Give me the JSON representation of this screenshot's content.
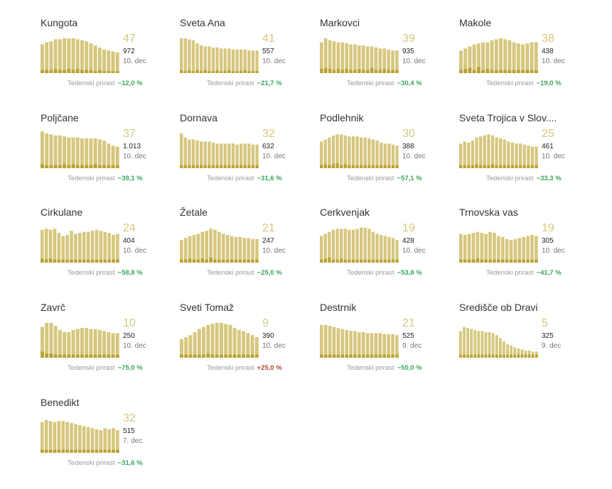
{
  "growth_label": "Tedenski prirast",
  "colors": {
    "bar": "#d6c77e",
    "bar_dark": "#b9a232",
    "big": "#d6c77e",
    "negative": "#3aa55d",
    "positive": "#b04a3a"
  },
  "chart_data": [
    {
      "type": "bar",
      "name": "Kungota",
      "big": "47",
      "total": "972",
      "date": "10. dec",
      "growth": "−12,0 %",
      "trend": "down",
      "values": [
        28,
        30,
        31,
        33,
        33,
        34,
        34,
        34,
        33,
        32,
        31,
        29,
        27,
        25,
        23,
        22,
        21,
        20
      ],
      "dark": [
        3,
        3,
        3,
        4,
        3,
        3,
        4,
        3,
        4,
        3,
        3,
        3,
        2,
        3,
        2,
        2,
        2,
        2
      ]
    },
    {
      "type": "bar",
      "name": "Sveta Ana",
      "big": "41",
      "total": "557",
      "date": "10. dec",
      "growth": "−21,7 %",
      "trend": "down",
      "values": [
        34,
        34,
        33,
        32,
        29,
        27,
        26,
        26,
        25,
        25,
        24,
        24,
        24,
        23,
        23,
        23,
        23,
        22,
        22,
        22
      ],
      "dark": [
        3,
        2,
        3,
        2,
        3,
        2,
        3,
        2,
        2,
        3,
        2,
        2,
        3,
        2,
        2,
        2,
        3,
        2,
        2,
        2
      ]
    },
    {
      "type": "bar",
      "name": "Markovci",
      "big": "39",
      "total": "935",
      "date": "10. dec",
      "growth": "−30,4 %",
      "trend": "down",
      "values": [
        30,
        34,
        32,
        31,
        30,
        30,
        29,
        28,
        28,
        27,
        27,
        26,
        26,
        25,
        24,
        24,
        23,
        22,
        22
      ],
      "dark": [
        4,
        5,
        4,
        3,
        4,
        3,
        4,
        3,
        3,
        4,
        3,
        3,
        5,
        3,
        3,
        4,
        3,
        3,
        3
      ]
    },
    {
      "type": "bar",
      "name": "Makole",
      "big": "38",
      "total": "438",
      "date": "10. dec",
      "growth": "−19,0 %",
      "trend": "down",
      "values": [
        22,
        24,
        26,
        28,
        29,
        30,
        30,
        32,
        33,
        34,
        33,
        32,
        30,
        29,
        28,
        29,
        30,
        30
      ],
      "dark": [
        3,
        4,
        5,
        3,
        6,
        3,
        4,
        3,
        3,
        3,
        3,
        3,
        3,
        3,
        3,
        3,
        3,
        3
      ]
    },
    {
      "type": "bar",
      "name": "Poljčane",
      "big": "37",
      "total": "1.013",
      "date": "10. dec",
      "growth": "−39,1 %",
      "trend": "down",
      "values": [
        36,
        34,
        33,
        32,
        32,
        31,
        30,
        30,
        30,
        29,
        29,
        29,
        29,
        28,
        27,
        24,
        22,
        21
      ],
      "dark": [
        4,
        3,
        3,
        3,
        3,
        4,
        3,
        4,
        3,
        3,
        3,
        3,
        4,
        3,
        3,
        3,
        3,
        3
      ]
    },
    {
      "type": "bar",
      "name": "Dornava",
      "big": "32",
      "total": "632",
      "date": "10. dec",
      "growth": "−31,6 %",
      "trend": "down",
      "values": [
        34,
        30,
        28,
        28,
        27,
        26,
        26,
        26,
        25,
        24,
        24,
        24,
        24,
        24,
        23,
        24,
        24,
        24,
        23,
        23
      ],
      "dark": [
        3,
        3,
        3,
        3,
        3,
        3,
        3,
        3,
        3,
        3,
        3,
        3,
        3,
        3,
        3,
        3,
        3,
        3,
        3,
        3
      ]
    },
    {
      "type": "bar",
      "name": "Podlehnik",
      "big": "30",
      "total": "388",
      "date": "10. dec",
      "growth": "−57,1 %",
      "trend": "down",
      "values": [
        26,
        28,
        30,
        32,
        33,
        33,
        32,
        31,
        31,
        31,
        30,
        30,
        29,
        28,
        27,
        25,
        24,
        24,
        23,
        22
      ],
      "dark": [
        3,
        4,
        3,
        4,
        5,
        3,
        4,
        3,
        3,
        3,
        3,
        3,
        3,
        3,
        3,
        3,
        3,
        3,
        3,
        3
      ]
    },
    {
      "type": "bar",
      "name": "Sveta Trojica v Slov....",
      "big": "25",
      "total": "461",
      "date": "10. dec",
      "growth": "−33,3 %",
      "trend": "down",
      "values": [
        24,
        26,
        25,
        27,
        30,
        31,
        32,
        33,
        32,
        30,
        29,
        28,
        26,
        25,
        24,
        24,
        23,
        22,
        21,
        21
      ],
      "dark": [
        3,
        3,
        3,
        3,
        4,
        3,
        3,
        3,
        4,
        3,
        3,
        3,
        3,
        3,
        3,
        3,
        3,
        3,
        3,
        3
      ]
    },
    {
      "type": "bar",
      "name": "Cirkulane",
      "big": "24",
      "total": "404",
      "date": "10. dec",
      "growth": "−58,8 %",
      "trend": "down",
      "values": [
        32,
        33,
        32,
        33,
        29,
        26,
        27,
        31,
        28,
        29,
        30,
        30,
        31,
        32,
        31,
        30,
        29,
        27,
        28
      ],
      "dark": [
        4,
        3,
        4,
        3,
        3,
        3,
        3,
        3,
        3,
        3,
        3,
        3,
        3,
        3,
        3,
        3,
        3,
        3,
        3
      ]
    },
    {
      "type": "bar",
      "name": "Žetale",
      "big": "21",
      "total": "247",
      "date": "10. dec",
      "growth": "−25,0 %",
      "trend": "down",
      "values": [
        22,
        24,
        26,
        27,
        28,
        30,
        31,
        33,
        32,
        30,
        28,
        27,
        26,
        25,
        25,
        24,
        24,
        23,
        23
      ],
      "dark": [
        3,
        3,
        4,
        3,
        3,
        4,
        3,
        5,
        3,
        3,
        3,
        3,
        3,
        3,
        3,
        3,
        3,
        3,
        3
      ]
    },
    {
      "type": "bar",
      "name": "Cerkvenjak",
      "big": "19",
      "total": "428",
      "date": "10. dec",
      "growth": "−53,8 %",
      "trend": "down",
      "values": [
        26,
        28,
        30,
        32,
        33,
        33,
        33,
        32,
        32,
        33,
        34,
        34,
        33,
        30,
        28,
        27,
        26,
        25,
        24,
        22
      ],
      "dark": [
        3,
        4,
        5,
        3,
        3,
        4,
        3,
        3,
        3,
        3,
        3,
        3,
        3,
        3,
        3,
        3,
        3,
        3,
        3,
        3
      ]
    },
    {
      "type": "bar",
      "name": "Trnovska vas",
      "big": "19",
      "total": "305",
      "date": "10. dec",
      "growth": "−41,7 %",
      "trend": "down",
      "values": [
        28,
        27,
        28,
        29,
        30,
        29,
        28,
        30,
        29,
        26,
        25,
        23,
        22,
        23,
        24,
        25,
        26,
        27,
        26
      ],
      "dark": [
        3,
        3,
        3,
        3,
        4,
        3,
        3,
        3,
        3,
        3,
        3,
        3,
        3,
        3,
        3,
        3,
        3,
        3,
        3
      ]
    },
    {
      "type": "bar",
      "name": "Zavrč",
      "big": "10",
      "total": "250",
      "date": "10. dec",
      "growth": "−75,0 %",
      "trend": "down",
      "values": [
        30,
        34,
        34,
        31,
        27,
        25,
        25,
        27,
        28,
        29,
        29,
        28,
        28,
        27,
        26,
        25,
        24,
        24
      ],
      "dark": [
        6,
        4,
        4,
        3,
        3,
        3,
        3,
        3,
        3,
        3,
        3,
        3,
        3,
        3,
        3,
        3,
        3,
        3
      ]
    },
    {
      "type": "bar",
      "name": "Sveti Tomaž",
      "big": "9",
      "total": "390",
      "date": "10. dec",
      "growth": "+25,0 %",
      "trend": "up",
      "values": [
        18,
        20,
        22,
        25,
        28,
        30,
        32,
        33,
        34,
        34,
        33,
        32,
        29,
        27,
        26,
        24,
        22,
        20
      ],
      "dark": [
        3,
        3,
        3,
        3,
        3,
        3,
        4,
        3,
        3,
        3,
        3,
        3,
        3,
        3,
        3,
        3,
        3,
        3
      ]
    },
    {
      "type": "bar",
      "name": "Destrnik",
      "big": "21",
      "total": "525",
      "date": "9. dec",
      "growth": "−50,0 %",
      "trend": "down",
      "values": [
        32,
        32,
        31,
        30,
        29,
        28,
        27,
        26,
        26,
        25,
        25,
        24,
        24,
        24,
        24,
        23,
        23,
        23,
        22
      ],
      "dark": [
        3,
        3,
        3,
        3,
        3,
        3,
        3,
        3,
        3,
        3,
        3,
        3,
        3,
        3,
        3,
        3,
        3,
        3,
        3
      ]
    },
    {
      "type": "bar",
      "name": "Središče ob Dravi",
      "big": "5",
      "total": "325",
      "date": "9. dec",
      "growth": "",
      "trend": "down",
      "values": [
        26,
        30,
        29,
        28,
        27,
        26,
        26,
        25,
        25,
        24,
        22,
        19,
        16,
        13,
        12,
        10,
        9,
        8,
        7,
        7,
        6,
        6
      ],
      "dark": [
        3,
        3,
        3,
        3,
        3,
        3,
        3,
        3,
        3,
        3,
        3,
        3,
        3,
        3,
        3,
        3,
        3,
        3,
        3,
        3,
        3,
        3
      ]
    },
    {
      "type": "bar",
      "name": "Benedikt",
      "big": "32",
      "total": "515",
      "date": "7. dec",
      "growth": "−31,6 %",
      "trend": "down",
      "values": [
        30,
        32,
        31,
        30,
        31,
        31,
        30,
        29,
        28,
        27,
        26,
        25,
        24,
        23,
        22,
        24,
        23,
        24,
        22
      ],
      "dark": [
        3,
        3,
        3,
        3,
        3,
        3,
        3,
        3,
        3,
        3,
        3,
        3,
        3,
        3,
        3,
        3,
        3,
        3,
        3
      ]
    }
  ]
}
